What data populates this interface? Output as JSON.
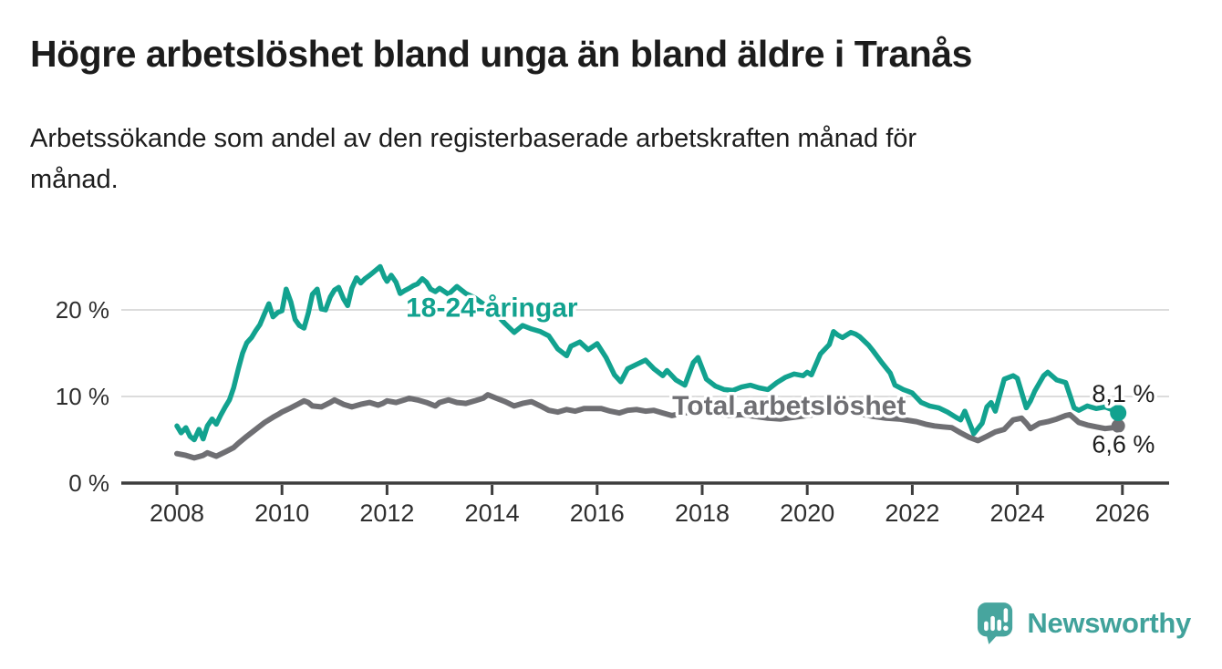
{
  "header": {
    "title": "Högre arbetslöshet bland unga än bland äldre i Tranås",
    "subtitle_line1": "Arbetssökande som andel av den registerbaserade arbetskraften månad för",
    "subtitle_line2": "månad."
  },
  "chart_data": {
    "type": "line",
    "title": "Högre arbetslöshet bland unga än bland äldre i Tranås",
    "subtitle": "Arbetssökande som andel av den registerbaserade arbetskraften månad för månad.",
    "unit": "%",
    "grid": true,
    "legend": "inline-labels",
    "x_axis": {
      "min": 2007.0,
      "max": 2026.9,
      "ticks": [
        2008,
        2010,
        2012,
        2014,
        2016,
        2018,
        2020,
        2022,
        2024,
        2026
      ]
    },
    "y_axis": {
      "min": 0,
      "max": 26,
      "ticks": [
        {
          "value": 0,
          "label": "0 %",
          "gridline": false
        },
        {
          "value": 10,
          "label": "10 %",
          "gridline": true
        },
        {
          "value": 20,
          "label": "20 %",
          "gridline": true
        }
      ]
    },
    "colors": {
      "youth": "#12a28f",
      "total": "#6f6f73",
      "gridline": "#dcdcdc",
      "axis": "#3d3d3d",
      "tick_label": "#2e2e2e",
      "value_label": "#1d1d1d"
    },
    "series": [
      {
        "id": "total",
        "name": "Total arbetslöshet",
        "color": "#6f6f73",
        "width": 6,
        "dot_r": 7.5,
        "inline_label": {
          "text": "Total arbetslöshet",
          "year": 2017.43,
          "value": 7.9
        },
        "end_label": {
          "text": "6,6 %",
          "year": 2025.42,
          "value": 3.55
        },
        "last_value": 6.6,
        "points": [
          [
            2008.0,
            3.4
          ],
          [
            2008.17,
            3.2
          ],
          [
            2008.33,
            2.9
          ],
          [
            2008.5,
            3.2
          ],
          [
            2008.58,
            3.5
          ],
          [
            2008.75,
            3.1
          ],
          [
            2008.92,
            3.6
          ],
          [
            2009.08,
            4.1
          ],
          [
            2009.17,
            4.6
          ],
          [
            2009.33,
            5.4
          ],
          [
            2009.5,
            6.2
          ],
          [
            2009.67,
            7.0
          ],
          [
            2009.83,
            7.6
          ],
          [
            2009.92,
            7.9
          ],
          [
            2010.0,
            8.2
          ],
          [
            2010.17,
            8.7
          ],
          [
            2010.33,
            9.2
          ],
          [
            2010.42,
            9.5
          ],
          [
            2010.5,
            9.3
          ],
          [
            2010.58,
            8.9
          ],
          [
            2010.75,
            8.8
          ],
          [
            2010.92,
            9.3
          ],
          [
            2011.0,
            9.6
          ],
          [
            2011.17,
            9.1
          ],
          [
            2011.33,
            8.8
          ],
          [
            2011.5,
            9.1
          ],
          [
            2011.67,
            9.3
          ],
          [
            2011.83,
            9.0
          ],
          [
            2011.92,
            9.2
          ],
          [
            2012.0,
            9.5
          ],
          [
            2012.17,
            9.3
          ],
          [
            2012.33,
            9.6
          ],
          [
            2012.42,
            9.8
          ],
          [
            2012.58,
            9.6
          ],
          [
            2012.75,
            9.3
          ],
          [
            2012.92,
            8.9
          ],
          [
            2013.0,
            9.3
          ],
          [
            2013.17,
            9.6
          ],
          [
            2013.33,
            9.3
          ],
          [
            2013.5,
            9.2
          ],
          [
            2013.67,
            9.5
          ],
          [
            2013.83,
            9.8
          ],
          [
            2013.92,
            10.2
          ],
          [
            2014.08,
            9.8
          ],
          [
            2014.25,
            9.4
          ],
          [
            2014.42,
            8.9
          ],
          [
            2014.58,
            9.2
          ],
          [
            2014.75,
            9.4
          ],
          [
            2014.92,
            8.9
          ],
          [
            2015.08,
            8.4
          ],
          [
            2015.25,
            8.2
          ],
          [
            2015.42,
            8.5
          ],
          [
            2015.58,
            8.3
          ],
          [
            2015.75,
            8.6
          ],
          [
            2015.92,
            8.6
          ],
          [
            2016.08,
            8.6
          ],
          [
            2016.25,
            8.3
          ],
          [
            2016.42,
            8.1
          ],
          [
            2016.58,
            8.4
          ],
          [
            2016.75,
            8.5
          ],
          [
            2016.92,
            8.3
          ],
          [
            2017.08,
            8.4
          ],
          [
            2017.25,
            8.1
          ],
          [
            2017.42,
            7.8
          ],
          [
            2017.58,
            8.0
          ],
          [
            2017.75,
            8.2
          ],
          [
            2017.92,
            8.4
          ],
          [
            2018.08,
            8.2
          ],
          [
            2018.25,
            8.0
          ],
          [
            2018.5,
            7.8
          ],
          [
            2018.75,
            7.9
          ],
          [
            2019.0,
            7.7
          ],
          [
            2019.25,
            7.5
          ],
          [
            2019.5,
            7.4
          ],
          [
            2019.75,
            7.6
          ],
          [
            2020.0,
            7.8
          ],
          [
            2020.25,
            8.0
          ],
          [
            2020.5,
            8.3
          ],
          [
            2020.75,
            8.2
          ],
          [
            2021.0,
            8.0
          ],
          [
            2021.25,
            7.7
          ],
          [
            2021.5,
            7.5
          ],
          [
            2021.75,
            7.4
          ],
          [
            2022.08,
            7.1
          ],
          [
            2022.25,
            6.8
          ],
          [
            2022.42,
            6.6
          ],
          [
            2022.58,
            6.5
          ],
          [
            2022.75,
            6.4
          ],
          [
            2022.92,
            5.8
          ],
          [
            2023.08,
            5.3
          ],
          [
            2023.25,
            4.9
          ],
          [
            2023.42,
            5.4
          ],
          [
            2023.58,
            5.9
          ],
          [
            2023.75,
            6.2
          ],
          [
            2023.92,
            7.3
          ],
          [
            2024.08,
            7.5
          ],
          [
            2024.17,
            6.9
          ],
          [
            2024.25,
            6.3
          ],
          [
            2024.42,
            6.9
          ],
          [
            2024.58,
            7.1
          ],
          [
            2024.75,
            7.4
          ],
          [
            2024.92,
            7.8
          ],
          [
            2025.0,
            7.9
          ],
          [
            2025.17,
            7.0
          ],
          [
            2025.33,
            6.7
          ],
          [
            2025.5,
            6.5
          ],
          [
            2025.67,
            6.3
          ],
          [
            2025.83,
            6.4
          ],
          [
            2025.92,
            6.6
          ]
        ]
      },
      {
        "id": "youth",
        "name": "18-24-åringar",
        "color": "#12a28f",
        "width": 5.5,
        "dot_r": 9,
        "inline_label": {
          "text": "18-24-åringar",
          "year": 2012.36,
          "value": 19.2
        },
        "end_label": {
          "text": "8,1 %",
          "year": 2025.42,
          "value": 9.35
        },
        "last_value": 8.1,
        "points": [
          [
            2008.0,
            6.6
          ],
          [
            2008.08,
            5.8
          ],
          [
            2008.17,
            6.4
          ],
          [
            2008.25,
            5.4
          ],
          [
            2008.33,
            5.0
          ],
          [
            2008.42,
            6.2
          ],
          [
            2008.5,
            5.1
          ],
          [
            2008.58,
            6.6
          ],
          [
            2008.67,
            7.4
          ],
          [
            2008.75,
            6.8
          ],
          [
            2008.83,
            7.8
          ],
          [
            2008.92,
            8.8
          ],
          [
            2009.0,
            9.6
          ],
          [
            2009.08,
            11.0
          ],
          [
            2009.17,
            13.2
          ],
          [
            2009.25,
            15.0
          ],
          [
            2009.33,
            16.2
          ],
          [
            2009.42,
            16.8
          ],
          [
            2009.5,
            17.6
          ],
          [
            2009.58,
            18.3
          ],
          [
            2009.67,
            19.6
          ],
          [
            2009.75,
            20.7
          ],
          [
            2009.83,
            19.2
          ],
          [
            2009.92,
            19.7
          ],
          [
            2010.0,
            19.9
          ],
          [
            2010.08,
            22.4
          ],
          [
            2010.17,
            20.9
          ],
          [
            2010.25,
            18.9
          ],
          [
            2010.33,
            18.2
          ],
          [
            2010.42,
            17.9
          ],
          [
            2010.5,
            19.6
          ],
          [
            2010.58,
            21.8
          ],
          [
            2010.67,
            22.4
          ],
          [
            2010.75,
            20.1
          ],
          [
            2010.83,
            20.0
          ],
          [
            2010.92,
            21.5
          ],
          [
            2011.0,
            22.3
          ],
          [
            2011.08,
            22.6
          ],
          [
            2011.17,
            21.3
          ],
          [
            2011.25,
            20.5
          ],
          [
            2011.33,
            22.5
          ],
          [
            2011.42,
            23.7
          ],
          [
            2011.5,
            23.1
          ],
          [
            2011.58,
            23.6
          ],
          [
            2011.67,
            24.0
          ],
          [
            2011.75,
            24.4
          ],
          [
            2011.87,
            25.0
          ],
          [
            2011.95,
            23.8
          ],
          [
            2012.0,
            23.3
          ],
          [
            2012.08,
            24.0
          ],
          [
            2012.17,
            23.2
          ],
          [
            2012.25,
            21.9
          ],
          [
            2012.33,
            22.2
          ],
          [
            2012.42,
            22.5
          ],
          [
            2012.5,
            22.8
          ],
          [
            2012.58,
            23.0
          ],
          [
            2012.67,
            23.6
          ],
          [
            2012.75,
            23.2
          ],
          [
            2012.83,
            22.4
          ],
          [
            2012.92,
            22.1
          ],
          [
            2013.0,
            22.5
          ],
          [
            2013.17,
            21.8
          ],
          [
            2013.33,
            22.7
          ],
          [
            2013.5,
            21.9
          ],
          [
            2013.67,
            21.4
          ],
          [
            2013.83,
            20.7
          ],
          [
            2014.0,
            20.1
          ],
          [
            2014.17,
            18.9
          ],
          [
            2014.25,
            18.4
          ],
          [
            2014.42,
            17.4
          ],
          [
            2014.58,
            18.2
          ],
          [
            2014.75,
            17.8
          ],
          [
            2014.92,
            17.5
          ],
          [
            2015.08,
            17.0
          ],
          [
            2015.25,
            15.5
          ],
          [
            2015.42,
            14.7
          ],
          [
            2015.5,
            15.8
          ],
          [
            2015.67,
            16.3
          ],
          [
            2015.83,
            15.4
          ],
          [
            2016.0,
            16.1
          ],
          [
            2016.17,
            14.5
          ],
          [
            2016.33,
            12.5
          ],
          [
            2016.45,
            11.7
          ],
          [
            2016.58,
            13.2
          ],
          [
            2016.75,
            13.7
          ],
          [
            2016.92,
            14.2
          ],
          [
            2017.08,
            13.2
          ],
          [
            2017.25,
            12.4
          ],
          [
            2017.33,
            13.0
          ],
          [
            2017.5,
            11.9
          ],
          [
            2017.67,
            11.3
          ],
          [
            2017.83,
            13.9
          ],
          [
            2017.92,
            14.5
          ],
          [
            2018.08,
            12.0
          ],
          [
            2018.25,
            11.2
          ],
          [
            2018.42,
            10.8
          ],
          [
            2018.58,
            10.7
          ],
          [
            2018.75,
            11.1
          ],
          [
            2018.92,
            11.3
          ],
          [
            2019.08,
            11.0
          ],
          [
            2019.25,
            10.8
          ],
          [
            2019.42,
            11.6
          ],
          [
            2019.58,
            12.2
          ],
          [
            2019.75,
            12.6
          ],
          [
            2019.92,
            12.4
          ],
          [
            2020.0,
            12.8
          ],
          [
            2020.08,
            12.5
          ],
          [
            2020.25,
            14.9
          ],
          [
            2020.42,
            16.0
          ],
          [
            2020.5,
            17.5
          ],
          [
            2020.58,
            17.1
          ],
          [
            2020.67,
            16.8
          ],
          [
            2020.83,
            17.4
          ],
          [
            2020.92,
            17.2
          ],
          [
            2021.0,
            16.9
          ],
          [
            2021.17,
            15.9
          ],
          [
            2021.25,
            15.3
          ],
          [
            2021.42,
            13.9
          ],
          [
            2021.58,
            12.7
          ],
          [
            2021.67,
            11.3
          ],
          [
            2021.83,
            10.8
          ],
          [
            2021.92,
            10.6
          ],
          [
            2022.0,
            10.4
          ],
          [
            2022.17,
            9.3
          ],
          [
            2022.33,
            8.9
          ],
          [
            2022.5,
            8.7
          ],
          [
            2022.67,
            8.2
          ],
          [
            2022.83,
            7.6
          ],
          [
            2022.92,
            7.3
          ],
          [
            2023.0,
            8.3
          ],
          [
            2023.17,
            5.7
          ],
          [
            2023.33,
            6.9
          ],
          [
            2023.42,
            8.8
          ],
          [
            2023.5,
            9.3
          ],
          [
            2023.58,
            8.3
          ],
          [
            2023.75,
            12.0
          ],
          [
            2023.92,
            12.4
          ],
          [
            2024.0,
            12.1
          ],
          [
            2024.17,
            8.7
          ],
          [
            2024.25,
            9.5
          ],
          [
            2024.33,
            10.6
          ],
          [
            2024.5,
            12.4
          ],
          [
            2024.58,
            12.8
          ],
          [
            2024.75,
            11.9
          ],
          [
            2024.92,
            11.6
          ],
          [
            2025.08,
            8.7
          ],
          [
            2025.17,
            8.4
          ],
          [
            2025.33,
            8.9
          ],
          [
            2025.5,
            8.6
          ],
          [
            2025.67,
            8.8
          ],
          [
            2025.83,
            8.4
          ],
          [
            2025.92,
            8.1
          ]
        ]
      }
    ]
  },
  "branding": {
    "logo_text": "Newsworthy",
    "logo_color": "#41a29b",
    "icon": "newsworthy-speech-bubble-bar-chart-icon"
  }
}
